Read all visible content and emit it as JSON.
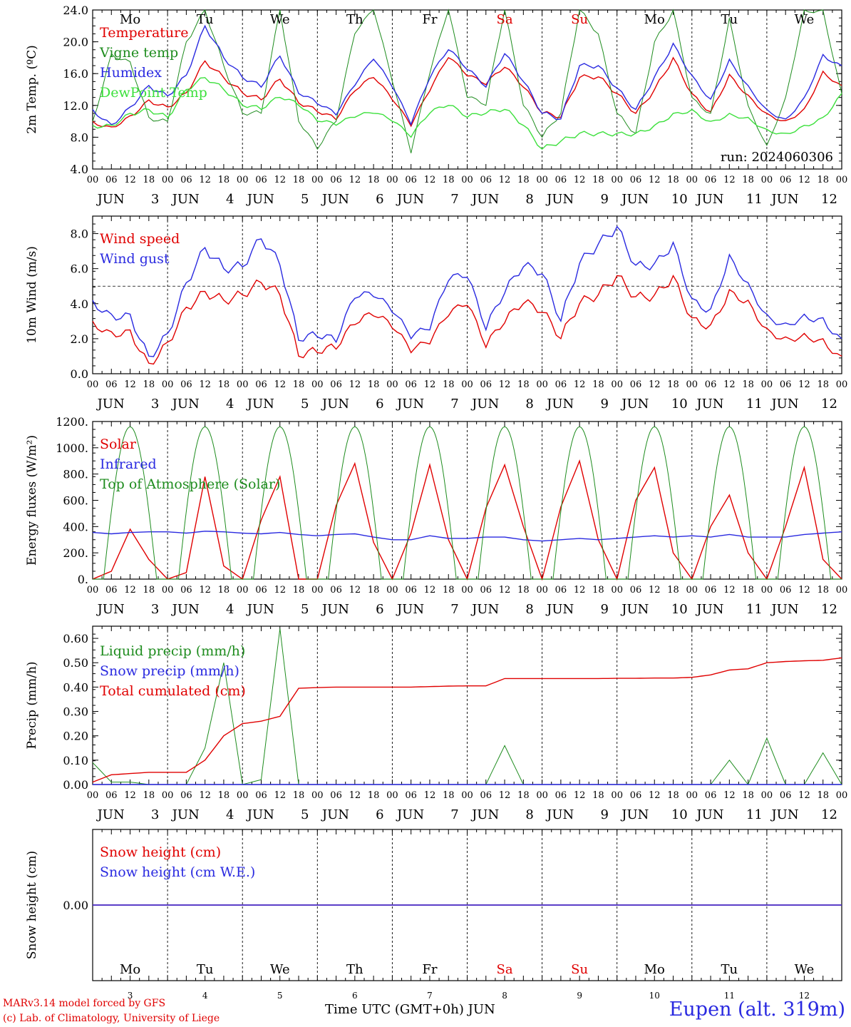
{
  "chart_data": [
    {
      "type": "line",
      "ylabel": "2m Temp. (ºC)",
      "ylim": [
        4,
        24
      ],
      "yticks": [
        "4.0",
        "8.0",
        "12.0",
        "16.0",
        "20.0",
        "24.0"
      ],
      "day_names": [
        {
          "label": "Mo",
          "color": "#000000"
        },
        {
          "label": "Tu",
          "color": "#000000"
        },
        {
          "label": "We",
          "color": "#000000"
        },
        {
          "label": "Th",
          "color": "#000000"
        },
        {
          "label": "Fr",
          "color": "#000000"
        },
        {
          "label": "Sa",
          "color": "#e00000"
        },
        {
          "label": "Su",
          "color": "#e00000"
        },
        {
          "label": "Mo",
          "color": "#000000"
        },
        {
          "label": "Tu",
          "color": "#000000"
        },
        {
          "label": "We",
          "color": "#000000"
        }
      ],
      "annotation": "run: 2024060306",
      "x_hours": [
        0,
        6,
        12,
        18,
        24,
        30,
        36,
        42,
        48,
        54,
        60,
        66,
        72,
        78,
        84,
        90,
        96,
        102,
        108,
        114,
        120,
        126,
        132,
        138,
        144,
        150,
        156,
        162,
        168,
        174,
        180,
        186,
        192,
        198,
        204,
        210,
        216,
        222,
        228,
        234,
        240
      ],
      "series": [
        {
          "name": "Temperature",
          "color": "#e00000",
          "values": [
            10.0,
            9.3,
            10.7,
            12.7,
            11.8,
            13.6,
            17.6,
            15.5,
            13.6,
            12.7,
            15.3,
            12.3,
            11.2,
            10.2,
            13.8,
            15.5,
            12.7,
            9.4,
            13.8,
            18.0,
            15.7,
            14.6,
            16.8,
            14.3,
            11.0,
            10.5,
            15.5,
            15.6,
            13.5,
            11.0,
            14.0,
            18.0,
            13.5,
            11.2,
            15.9,
            13.3,
            11.0,
            10.1,
            11.6,
            16.3,
            14.5
          ]
        },
        {
          "name": "Vigne temp",
          "color": "#1e8c1e",
          "values": [
            10.0,
            18.5,
            17.5,
            10.5,
            10.0,
            20.0,
            24.0,
            17.0,
            11.0,
            11.0,
            24.0,
            10.0,
            6.5,
            10.0,
            21.0,
            24.0,
            15.0,
            6.0,
            16.0,
            24.0,
            13.0,
            12.0,
            24.0,
            12.0,
            8.0,
            11.0,
            24.0,
            21.0,
            11.0,
            8.5,
            20.0,
            24.0,
            13.0,
            11.0,
            23.0,
            12.0,
            7.0,
            13.0,
            24.0,
            24.0,
            13.5
          ]
        },
        {
          "name": "Humidex",
          "color": "#2a2ae0",
          "values": [
            11.5,
            9.6,
            11.8,
            14.5,
            13.2,
            15.8,
            22.0,
            18.0,
            15.5,
            14.3,
            18.2,
            13.5,
            12.2,
            10.8,
            14.5,
            17.8,
            14.3,
            9.6,
            15.4,
            19.0,
            16.5,
            14.3,
            18.5,
            15.0,
            11.0,
            10.3,
            17.0,
            17.0,
            14.2,
            11.5,
            15.6,
            19.8,
            15.8,
            12.8,
            17.8,
            14.5,
            11.5,
            10.3,
            13.0,
            18.4,
            17.0
          ]
        },
        {
          "name": "DewPoint Temp",
          "color": "#3ce03c",
          "values": [
            9.5,
            9.5,
            11.0,
            11.5,
            10.5,
            14.0,
            15.5,
            14.0,
            12.0,
            11.5,
            13.0,
            12.0,
            10.0,
            9.5,
            10.5,
            11.0,
            10.0,
            8.0,
            11.0,
            12.0,
            10.5,
            11.0,
            11.5,
            9.5,
            6.5,
            7.5,
            8.5,
            8.5,
            8.5,
            8.5,
            9.5,
            11.0,
            11.5,
            10.0,
            11.0,
            10.5,
            9.0,
            8.5,
            9.5,
            10.5,
            13.5
          ]
        }
      ]
    },
    {
      "type": "line",
      "ylabel": "10m Wind (m/s)",
      "ylim": [
        0,
        9
      ],
      "yticks": [
        "0.0",
        "2.0",
        "4.0",
        "6.0",
        "8.0"
      ],
      "reference_line": 5.0,
      "x_hours": [
        0,
        6,
        12,
        18,
        24,
        30,
        36,
        42,
        48,
        54,
        60,
        66,
        72,
        78,
        84,
        90,
        96,
        102,
        108,
        114,
        120,
        126,
        132,
        138,
        144,
        150,
        156,
        162,
        168,
        174,
        180,
        186,
        192,
        198,
        204,
        210,
        216,
        222,
        228,
        234,
        240
      ],
      "series": [
        {
          "name": "Wind speed",
          "color": "#e00000",
          "values": [
            3.0,
            2.4,
            2.5,
            0.6,
            1.8,
            3.8,
            4.7,
            4.2,
            4.5,
            5.2,
            4.5,
            1.0,
            1.2,
            1.4,
            2.8,
            3.3,
            2.6,
            1.2,
            1.7,
            3.3,
            3.9,
            1.5,
            2.9,
            4.0,
            3.5,
            2.0,
            4.0,
            4.5,
            5.6,
            4.4,
            4.5,
            5.6,
            3.2,
            2.8,
            4.8,
            4.2,
            2.6,
            2.1,
            2.3,
            2.0,
            1.0
          ]
        },
        {
          "name": "Wind gust",
          "color": "#2a2ae0",
          "values": [
            4.2,
            3.4,
            3.4,
            1.0,
            2.3,
            5.2,
            7.2,
            6.0,
            6.1,
            7.7,
            6.2,
            1.9,
            2.1,
            1.8,
            4.3,
            4.4,
            3.5,
            2.0,
            2.5,
            5.3,
            5.5,
            2.5,
            4.6,
            6.1,
            5.7,
            3.0,
            6.3,
            7.4,
            8.4,
            6.2,
            6.3,
            7.5,
            4.3,
            3.7,
            6.8,
            5.2,
            3.4,
            2.9,
            3.4,
            3.2,
            2.0
          ]
        }
      ]
    },
    {
      "type": "line",
      "ylabel": "Energy fluxes (W/m²)",
      "ylim": [
        0,
        1200
      ],
      "yticks": [
        "0.",
        "200.",
        "400.",
        "600.",
        "800.",
        "1000.",
        "1200."
      ],
      "x_hours": [
        0,
        6,
        12,
        18,
        24,
        30,
        36,
        42,
        48,
        54,
        60,
        66,
        72,
        78,
        84,
        90,
        96,
        102,
        108,
        114,
        120,
        126,
        132,
        138,
        144,
        150,
        156,
        162,
        168,
        174,
        180,
        186,
        192,
        198,
        204,
        210,
        216,
        222,
        228,
        234,
        240
      ],
      "series": [
        {
          "name": "Solar",
          "color": "#e00000",
          "values": [
            0,
            60,
            380,
            150,
            0,
            50,
            780,
            100,
            0,
            450,
            780,
            0,
            0,
            560,
            880,
            280,
            0,
            350,
            870,
            300,
            0,
            540,
            870,
            400,
            0,
            550,
            900,
            300,
            0,
            600,
            850,
            200,
            0,
            400,
            640,
            200,
            0,
            400,
            850,
            150,
            0
          ]
        },
        {
          "name": "Infrared",
          "color": "#2a2ae0",
          "values": [
            355,
            345,
            355,
            360,
            360,
            350,
            365,
            360,
            350,
            345,
            355,
            340,
            330,
            340,
            345,
            320,
            300,
            300,
            330,
            310,
            310,
            320,
            320,
            300,
            290,
            300,
            310,
            300,
            310,
            320,
            330,
            320,
            330,
            320,
            340,
            320,
            320,
            320,
            340,
            350,
            360
          ]
        },
        {
          "name": "Top of Atmosphere (Solar)",
          "type": "diurnal",
          "color": "#1e8c1e",
          "peak": 1160,
          "peak_hour": 12,
          "half_width_hours": 8.5
        }
      ]
    },
    {
      "type": "line",
      "ylabel": "Precip (mm/h)",
      "ylim": [
        0,
        0.65
      ],
      "yticks": [
        "0.00",
        "0.10",
        "0.20",
        "0.30",
        "0.40",
        "0.50",
        "0.60"
      ],
      "x_hours": [
        0,
        6,
        12,
        18,
        24,
        30,
        36,
        42,
        48,
        54,
        60,
        66,
        72,
        78,
        84,
        90,
        96,
        102,
        108,
        114,
        120,
        126,
        132,
        138,
        144,
        150,
        156,
        162,
        168,
        174,
        180,
        186,
        192,
        198,
        204,
        210,
        216,
        222,
        228,
        234,
        240
      ],
      "series": [
        {
          "name": "Liquid precip (mm/h)",
          "color": "#1e8c1e",
          "values": [
            0.09,
            0.01,
            0.01,
            0.0,
            0.0,
            0.0,
            0.15,
            0.5,
            0.0,
            0.02,
            0.64,
            0.0,
            0.0,
            0.0,
            0.0,
            0.0,
            0.0,
            0.0,
            0.0,
            0.0,
            0.0,
            0.0,
            0.16,
            0.0,
            0.0,
            0.0,
            0.0,
            0.0,
            0.0,
            0.0,
            0.0,
            0.0,
            0.0,
            0.0,
            0.1,
            0.0,
            0.19,
            0.0,
            0.0,
            0.13,
            0.0
          ]
        },
        {
          "name": "Snow precip (mm/h)",
          "color": "#2a2ae0",
          "values": [
            0,
            0,
            0,
            0,
            0,
            0,
            0,
            0,
            0,
            0,
            0,
            0,
            0,
            0,
            0,
            0,
            0,
            0,
            0,
            0,
            0,
            0,
            0,
            0,
            0,
            0,
            0,
            0,
            0,
            0,
            0,
            0,
            0,
            0,
            0,
            0,
            0,
            0,
            0,
            0,
            0
          ]
        },
        {
          "name": "Total cumulated (cm)",
          "color": "#e00000",
          "values": [
            0.01,
            0.04,
            0.045,
            0.05,
            0.05,
            0.05,
            0.1,
            0.2,
            0.25,
            0.26,
            0.28,
            0.395,
            0.398,
            0.4,
            0.4,
            0.4,
            0.4,
            0.4,
            0.402,
            0.404,
            0.405,
            0.405,
            0.435,
            0.435,
            0.435,
            0.435,
            0.435,
            0.435,
            0.436,
            0.436,
            0.437,
            0.437,
            0.44,
            0.45,
            0.47,
            0.475,
            0.5,
            0.505,
            0.508,
            0.51,
            0.52
          ]
        }
      ]
    },
    {
      "type": "line",
      "ylabel": "Snow height (cm)",
      "ylim": [
        -1,
        1
      ],
      "yticks": [
        "0.00"
      ],
      "series": [
        {
          "name": "Snow height (cm)",
          "color": "#e00000",
          "values": [
            0,
            0
          ]
        },
        {
          "name": "Snow height (cm W.E.)",
          "color": "#2a2ae0",
          "values": [
            0,
            0
          ]
        }
      ]
    }
  ],
  "x_axis": {
    "hour_ticks": [
      "00",
      "06",
      "12",
      "18"
    ],
    "end_tick": "00",
    "month": "JUN",
    "days": [
      "3",
      "4",
      "5",
      "6",
      "7",
      "8",
      "9",
      "10",
      "11",
      "12"
    ],
    "bottom_title": "Time UTC (GMT+0h)",
    "bottom_month": "JUN"
  },
  "footer": {
    "model_line": "MARv3.14 model forced by GFS",
    "copyright_line": "(c) Lab. of Climatology, University of Liege",
    "station": "Eupen (alt. 319m)"
  }
}
